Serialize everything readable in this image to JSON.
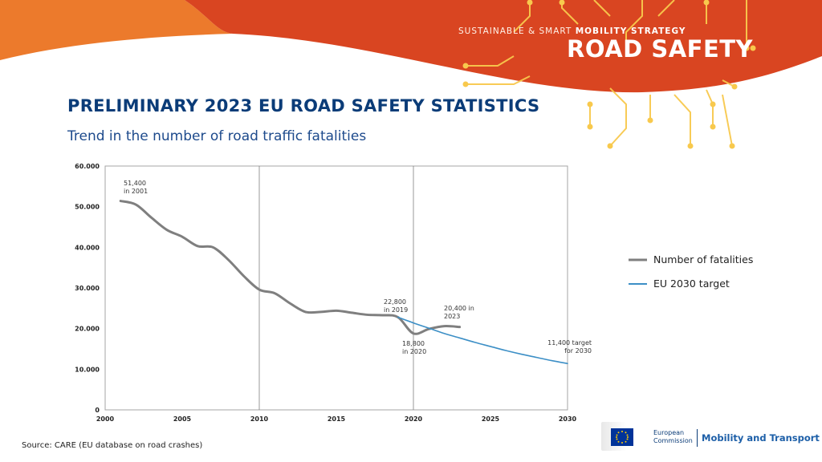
{
  "header": {
    "strategy_prefix": "SUSTAINABLE & SMART",
    "strategy_bold": "MOBILITY STRATEGY",
    "brand": "ROAD SAFETY"
  },
  "title": "PRELIMINARY 2023 EU ROAD SAFETY STATISTICS",
  "subtitle": "Trend in the number of road traffic fatalities",
  "colors": {
    "banner_orange": "#d94521",
    "banner_light": "#ec7a2c",
    "circuit_yellow": "#f8c94d",
    "title_blue": "#0b3c78",
    "fatalities_gray": "#7f7f7f",
    "target_blue": "#3c8fc6"
  },
  "chart_data": {
    "type": "line",
    "xlim": [
      2000,
      2030
    ],
    "ylim": [
      0,
      60000
    ],
    "x_ticks": [
      "2000",
      "2005",
      "2010",
      "2015",
      "2020",
      "2025",
      "2030"
    ],
    "y_ticks": [
      "0",
      "10.000",
      "20.000",
      "30.000",
      "40.000",
      "50.000",
      "60.000"
    ],
    "vertical_reference_lines": [
      2010,
      2020
    ],
    "series": [
      {
        "name": "Number of fatalities",
        "color": "#7f7f7f",
        "x": [
          2001,
          2002,
          2003,
          2004,
          2005,
          2006,
          2007,
          2008,
          2009,
          2010,
          2011,
          2012,
          2013,
          2014,
          2015,
          2016,
          2017,
          2018,
          2019,
          2020,
          2021,
          2022,
          2023
        ],
        "y": [
          51400,
          50500,
          47300,
          44300,
          42600,
          40300,
          40000,
          36900,
          32900,
          29600,
          28700,
          26200,
          24100,
          24100,
          24400,
          23900,
          23400,
          23300,
          22800,
          18800,
          19900,
          20600,
          20400
        ]
      },
      {
        "name": "EU 2030 target",
        "color": "#3c8fc6",
        "x": [
          2019,
          2020,
          2021,
          2022,
          2023,
          2024,
          2025,
          2026,
          2027,
          2028,
          2029,
          2030
        ],
        "y": [
          22800,
          21400,
          20100,
          18800,
          17700,
          16600,
          15600,
          14600,
          13700,
          12900,
          12100,
          11400
        ]
      }
    ],
    "annotations": [
      {
        "line1": "51,400",
        "line2": "in 2001"
      },
      {
        "line1": "22,800",
        "line2": "in 2019"
      },
      {
        "line1": "18,800",
        "line2": "in 2020"
      },
      {
        "line1": "20,400 in",
        "line2": "2023"
      },
      {
        "line1": "11,400 target",
        "line2": "for 2030"
      }
    ],
    "legend": {
      "placement": "right",
      "entries": [
        "Number of fatalities",
        "EU 2030 target"
      ]
    }
  },
  "source": "Source: CARE (EU database on road crashes)",
  "logo": {
    "name_line1": "European",
    "name_line2": "Commission",
    "dg": "Mobility and Transport"
  }
}
